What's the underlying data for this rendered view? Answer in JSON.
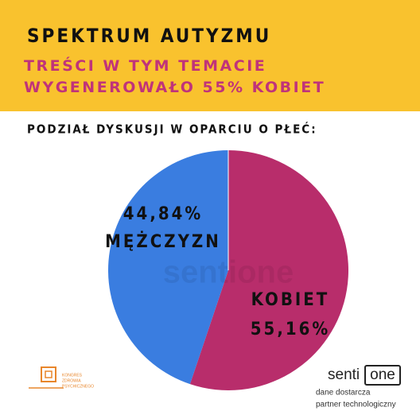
{
  "chart_data": {
    "type": "pie",
    "title": "SPEKTRUM AUTYZMU",
    "subtitle": "TREŚCI W TYM TEMACIE WYGENEROWAŁO 55% KOBIET",
    "heading": "PODZIAŁ DYSKUSJI W OPARCIU O PŁEĆ:",
    "categories": [
      "KOBIET",
      "MĘŻCZYZN"
    ],
    "values": [
      55.16,
      44.84
    ],
    "value_labels": [
      "55,16%",
      "44,84%"
    ],
    "colors": [
      "#b82d6b",
      "#3a7de0"
    ]
  },
  "branding": {
    "watermark": "sentione",
    "left_logo": [
      "KONGRES",
      "ZDROWIA",
      "PSYCHICZNEGO"
    ],
    "right_logo": {
      "name_a": "senti",
      "name_b": "one",
      "line1": "dane dostarcza",
      "line2": "partner technologiczny"
    }
  }
}
